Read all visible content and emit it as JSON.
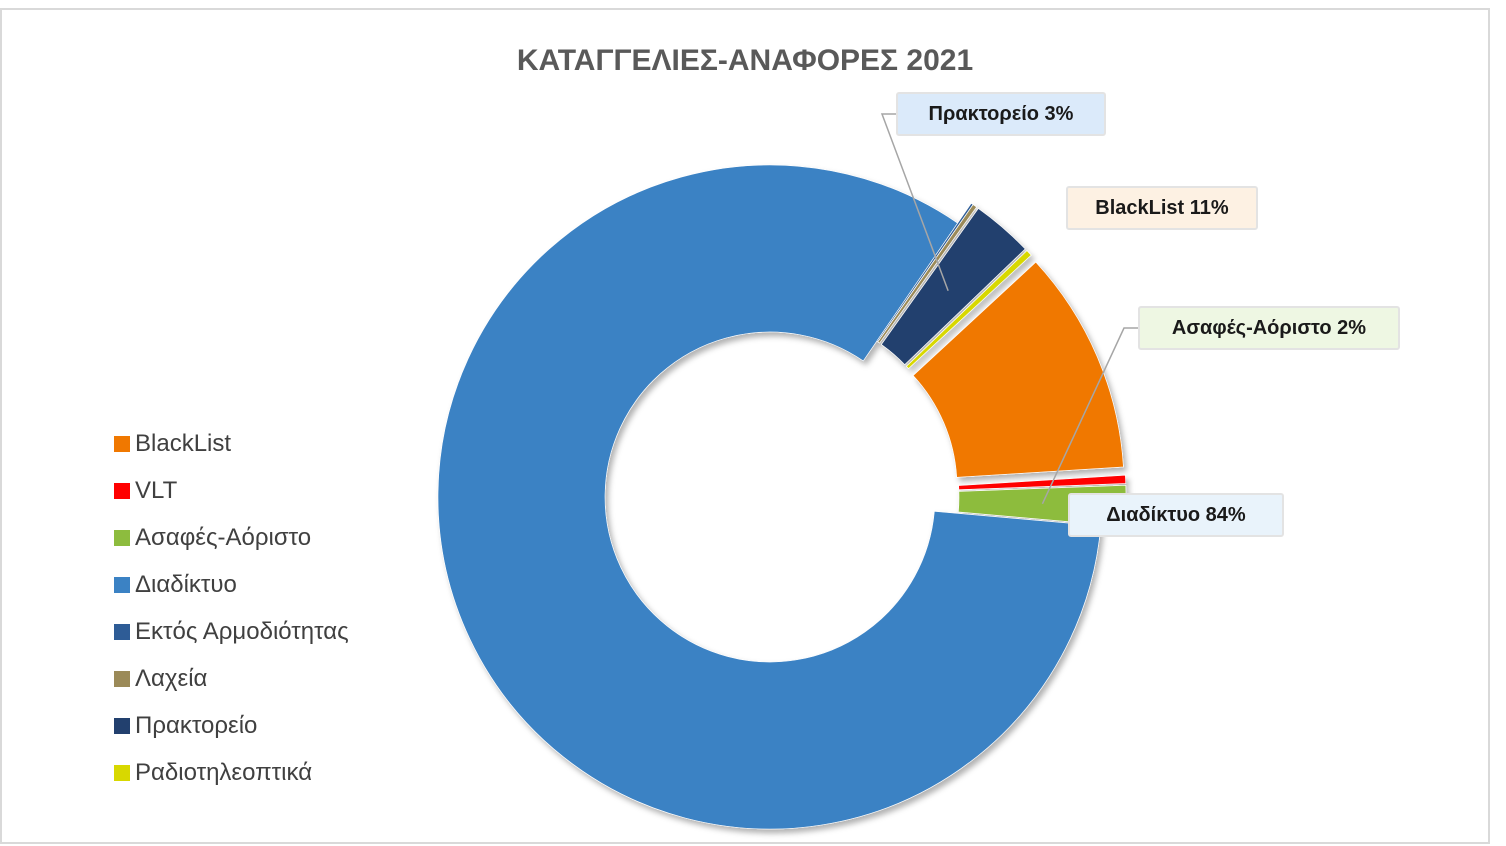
{
  "chart_data": {
    "type": "pie",
    "title": "ΚΑΤΑΓΓΕΛΙΕΣ-ΑΝΑΦΟΡΕΣ 2021",
    "legend_position": "left",
    "categories": [
      "BlackList",
      "VLT",
      "Ασαφές-Αόριστο",
      "Διαδίκτυο",
      "Εκτός Αρμοδιότητας",
      "Λαχεία",
      "Πρακτορείο",
      "Ραδιοτηλεοπτικά"
    ],
    "values": [
      11,
      0.4,
      2,
      84,
      0.1,
      0.2,
      3,
      0.3
    ],
    "colors": [
      "#f07800",
      "#ff0000",
      "#8dbc3e",
      "#3b82c4",
      "#2e5c96",
      "#9b8a58",
      "#22406e",
      "#d8d800"
    ],
    "data_labels": [
      {
        "category": "Πρακτορείο",
        "text": "Πρακτορείο 3%",
        "fill": "#dbeafa"
      },
      {
        "category": "BlackList",
        "text": "BlackList 11%",
        "fill": "#fdf1e3"
      },
      {
        "category": "Ασαφές-Αόριστο",
        "text": "Ασαφές-Αόριστο 2%",
        "fill": "#eef7e3"
      },
      {
        "category": "Διαδίκτυο",
        "text": "Διαδίκτυο 84%",
        "fill": "#e9f3fb"
      }
    ]
  }
}
